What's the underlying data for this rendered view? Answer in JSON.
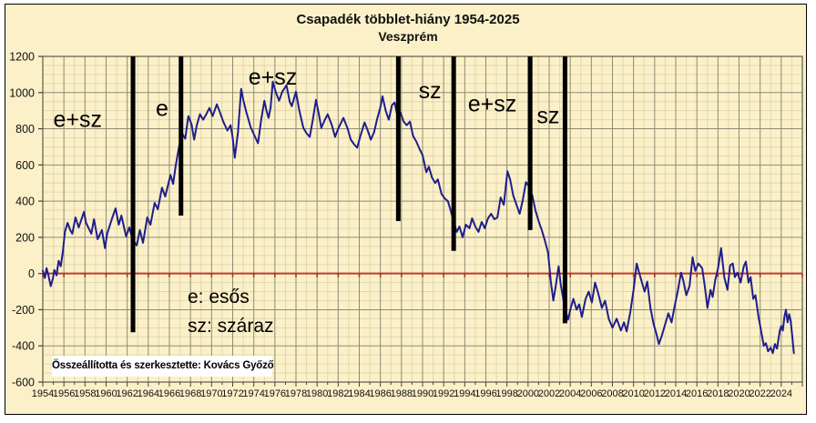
{
  "title": {
    "line1": "Csapadék többlet-hiány 1954-2025",
    "line2": "Veszprém"
  },
  "legend": {
    "line1": "e: esős",
    "line2": "sz: száraz"
  },
  "attribution": "Összeállította és szerkesztette: Kovács Győző",
  "colors": {
    "outer_background": "#FFFFFF",
    "background": "#FBF0C8",
    "grid_minor": "#E2D8AE",
    "grid_major": "#8F8C74",
    "plot_border": "#5C5A4C",
    "tick": "#444444",
    "text": "#111111",
    "zero_line": "#C0392B",
    "zero_tick": "#A93226",
    "series": "#1E1E8C",
    "separator": "#000000"
  },
  "chart_data": {
    "type": "line",
    "title": "Csapadék többlet-hiány 1954-2025 — Veszprém",
    "xlabel": "",
    "ylabel": "",
    "x_range": [
      1954,
      2026
    ],
    "y_range": [
      -600,
      1200
    ],
    "x_major_step": 2,
    "x_minor_step": 1,
    "y_major_step": 200,
    "y_minor_step": 50,
    "grid": true,
    "zero_line": 0,
    "x_tick_labels": [
      "1954",
      "1956",
      "1958",
      "1960",
      "1962",
      "1964",
      "1966",
      "1968",
      "1970",
      "1972",
      "1974",
      "1976",
      "1978",
      "1980",
      "1982",
      "1984",
      "1986",
      "1988",
      "1990",
      "1992",
      "1994",
      "1996",
      "1998",
      "2000",
      "2002",
      "2004",
      "2006",
      "2008",
      "2010",
      "2012",
      "2014",
      "2016",
      "2018",
      "2020",
      "2022",
      "2024"
    ],
    "y_tick_labels": [
      "1200",
      "1000",
      "800",
      "600",
      "400",
      "200",
      "0",
      "-200",
      "-400",
      "-600"
    ],
    "series": [
      {
        "name": "csapadék többlet-hiány",
        "points": [
          [
            1954.0,
            15
          ],
          [
            1954.2,
            -25
          ],
          [
            1954.35,
            30
          ],
          [
            1954.55,
            -15
          ],
          [
            1954.75,
            -70
          ],
          [
            1954.95,
            -30
          ],
          [
            1955.1,
            20
          ],
          [
            1955.3,
            -10
          ],
          [
            1955.5,
            70
          ],
          [
            1955.7,
            40
          ],
          [
            1955.9,
            120
          ],
          [
            1956.1,
            230
          ],
          [
            1956.35,
            280
          ],
          [
            1956.6,
            240
          ],
          [
            1956.8,
            220
          ],
          [
            1957.1,
            310
          ],
          [
            1957.4,
            255
          ],
          [
            1957.9,
            340
          ],
          [
            1958.1,
            280
          ],
          [
            1958.6,
            220
          ],
          [
            1958.85,
            300
          ],
          [
            1959.2,
            190
          ],
          [
            1959.6,
            240
          ],
          [
            1959.9,
            140
          ],
          [
            1960.1,
            220
          ],
          [
            1960.6,
            310
          ],
          [
            1960.9,
            360
          ],
          [
            1961.2,
            270
          ],
          [
            1961.45,
            320
          ],
          [
            1961.9,
            205
          ],
          [
            1962.2,
            255
          ],
          [
            1962.5,
            190
          ],
          [
            1962.9,
            155
          ],
          [
            1963.2,
            240
          ],
          [
            1963.5,
            170
          ],
          [
            1963.9,
            310
          ],
          [
            1964.2,
            270
          ],
          [
            1964.6,
            390
          ],
          [
            1964.9,
            355
          ],
          [
            1965.3,
            475
          ],
          [
            1965.6,
            425
          ],
          [
            1966.1,
            545
          ],
          [
            1966.35,
            495
          ],
          [
            1966.6,
            595
          ],
          [
            1966.9,
            695
          ],
          [
            1967.2,
            775
          ],
          [
            1967.5,
            745
          ],
          [
            1967.8,
            870
          ],
          [
            1968.1,
            825
          ],
          [
            1968.35,
            740
          ],
          [
            1968.6,
            820
          ],
          [
            1968.9,
            880
          ],
          [
            1969.2,
            850
          ],
          [
            1969.5,
            880
          ],
          [
            1969.8,
            915
          ],
          [
            1970.1,
            870
          ],
          [
            1970.5,
            935
          ],
          [
            1970.8,
            890
          ],
          [
            1971.1,
            840
          ],
          [
            1971.5,
            790
          ],
          [
            1971.8,
            820
          ],
          [
            1972.0,
            750
          ],
          [
            1972.2,
            640
          ],
          [
            1972.5,
            780
          ],
          [
            1972.8,
            1020
          ],
          [
            1973.0,
            960
          ],
          [
            1973.3,
            890
          ],
          [
            1973.7,
            810
          ],
          [
            1974.0,
            770
          ],
          [
            1974.4,
            720
          ],
          [
            1974.7,
            850
          ],
          [
            1975.0,
            955
          ],
          [
            1975.2,
            900
          ],
          [
            1975.4,
            860
          ],
          [
            1975.6,
            920
          ],
          [
            1975.8,
            1060
          ],
          [
            1976.1,
            1000
          ],
          [
            1976.4,
            955
          ],
          [
            1976.7,
            1005
          ],
          [
            1977.1,
            1040
          ],
          [
            1977.4,
            950
          ],
          [
            1977.6,
            925
          ],
          [
            1978.0,
            1005
          ],
          [
            1978.3,
            905
          ],
          [
            1978.7,
            805
          ],
          [
            1979.0,
            775
          ],
          [
            1979.3,
            755
          ],
          [
            1979.6,
            850
          ],
          [
            1979.9,
            960
          ],
          [
            1980.2,
            870
          ],
          [
            1980.4,
            805
          ],
          [
            1980.7,
            845
          ],
          [
            1981.0,
            880
          ],
          [
            1981.4,
            820
          ],
          [
            1981.7,
            755
          ],
          [
            1982.0,
            800
          ],
          [
            1982.5,
            860
          ],
          [
            1982.9,
            800
          ],
          [
            1983.2,
            740
          ],
          [
            1983.5,
            715
          ],
          [
            1983.8,
            695
          ],
          [
            1984.1,
            760
          ],
          [
            1984.5,
            835
          ],
          [
            1984.8,
            790
          ],
          [
            1985.1,
            740
          ],
          [
            1985.4,
            780
          ],
          [
            1985.7,
            855
          ],
          [
            1986.0,
            920
          ],
          [
            1986.2,
            980
          ],
          [
            1986.5,
            900
          ],
          [
            1986.8,
            850
          ],
          [
            1987.1,
            930
          ],
          [
            1987.35,
            945
          ],
          [
            1987.6,
            875
          ],
          [
            1987.9,
            890
          ],
          [
            1988.2,
            840
          ],
          [
            1988.5,
            820
          ],
          [
            1988.8,
            840
          ],
          [
            1989.1,
            760
          ],
          [
            1989.4,
            730
          ],
          [
            1989.7,
            690
          ],
          [
            1990.0,
            655
          ],
          [
            1990.35,
            560
          ],
          [
            1990.6,
            590
          ],
          [
            1990.9,
            530
          ],
          [
            1991.2,
            500
          ],
          [
            1991.45,
            520
          ],
          [
            1991.8,
            440
          ],
          [
            1992.1,
            415
          ],
          [
            1992.4,
            400
          ],
          [
            1992.7,
            340
          ],
          [
            1992.95,
            285
          ],
          [
            1993.25,
            230
          ],
          [
            1993.5,
            260
          ],
          [
            1993.8,
            200
          ],
          [
            1994.1,
            270
          ],
          [
            1994.45,
            250
          ],
          [
            1994.7,
            305
          ],
          [
            1995.0,
            260
          ],
          [
            1995.3,
            230
          ],
          [
            1995.6,
            285
          ],
          [
            1995.9,
            250
          ],
          [
            1996.2,
            305
          ],
          [
            1996.5,
            330
          ],
          [
            1996.8,
            300
          ],
          [
            1997.1,
            310
          ],
          [
            1997.4,
            420
          ],
          [
            1997.7,
            380
          ],
          [
            1998.05,
            565
          ],
          [
            1998.3,
            520
          ],
          [
            1998.6,
            430
          ],
          [
            1998.9,
            380
          ],
          [
            1999.2,
            330
          ],
          [
            1999.5,
            405
          ],
          [
            1999.8,
            505
          ],
          [
            2000.1,
            480
          ],
          [
            2000.4,
            430
          ],
          [
            2000.7,
            350
          ],
          [
            2001.0,
            290
          ],
          [
            2001.3,
            240
          ],
          [
            2001.6,
            180
          ],
          [
            2001.9,
            115
          ],
          [
            2002.15,
            -40
          ],
          [
            2002.4,
            -150
          ],
          [
            2002.65,
            -60
          ],
          [
            2002.9,
            40
          ],
          [
            2003.1,
            -60
          ],
          [
            2003.35,
            -145
          ],
          [
            2003.6,
            -215
          ],
          [
            2003.8,
            -255
          ],
          [
            2004.0,
            -200
          ],
          [
            2004.3,
            -140
          ],
          [
            2004.6,
            -200
          ],
          [
            2004.85,
            -170
          ],
          [
            2005.1,
            -240
          ],
          [
            2005.45,
            -140
          ],
          [
            2005.75,
            -100
          ],
          [
            2006.05,
            -160
          ],
          [
            2006.35,
            -50
          ],
          [
            2006.65,
            -110
          ],
          [
            2007.0,
            -190
          ],
          [
            2007.3,
            -150
          ],
          [
            2007.65,
            -250
          ],
          [
            2008.0,
            -300
          ],
          [
            2008.4,
            -250
          ],
          [
            2008.8,
            -315
          ],
          [
            2009.1,
            -270
          ],
          [
            2009.35,
            -320
          ],
          [
            2009.7,
            -210
          ],
          [
            2010.0,
            -90
          ],
          [
            2010.3,
            55
          ],
          [
            2010.5,
            10
          ],
          [
            2010.8,
            -50
          ],
          [
            2011.05,
            -100
          ],
          [
            2011.3,
            -45
          ],
          [
            2011.6,
            -190
          ],
          [
            2011.9,
            -280
          ],
          [
            2012.15,
            -330
          ],
          [
            2012.4,
            -390
          ],
          [
            2012.7,
            -340
          ],
          [
            2013.0,
            -280
          ],
          [
            2013.3,
            -220
          ],
          [
            2013.6,
            -270
          ],
          [
            2013.9,
            -180
          ],
          [
            2014.2,
            -95
          ],
          [
            2014.5,
            5
          ],
          [
            2014.7,
            -35
          ],
          [
            2015.0,
            -120
          ],
          [
            2015.3,
            -70
          ],
          [
            2015.6,
            90
          ],
          [
            2015.85,
            15
          ],
          [
            2016.15,
            55
          ],
          [
            2016.5,
            30
          ],
          [
            2016.75,
            -70
          ],
          [
            2017.0,
            -190
          ],
          [
            2017.3,
            -90
          ],
          [
            2017.5,
            -130
          ],
          [
            2017.75,
            -35
          ],
          [
            2018.0,
            25
          ],
          [
            2018.3,
            140
          ],
          [
            2018.6,
            -20
          ],
          [
            2018.9,
            -90
          ],
          [
            2019.15,
            45
          ],
          [
            2019.4,
            55
          ],
          [
            2019.6,
            -20
          ],
          [
            2019.85,
            5
          ],
          [
            2020.15,
            -50
          ],
          [
            2020.45,
            40
          ],
          [
            2020.65,
            65
          ],
          [
            2020.9,
            -50
          ],
          [
            2021.1,
            -20
          ],
          [
            2021.35,
            -140
          ],
          [
            2021.55,
            -120
          ],
          [
            2021.85,
            -240
          ],
          [
            2022.1,
            -320
          ],
          [
            2022.35,
            -400
          ],
          [
            2022.55,
            -385
          ],
          [
            2022.75,
            -430
          ],
          [
            2023.0,
            -410
          ],
          [
            2023.2,
            -440
          ],
          [
            2023.4,
            -390
          ],
          [
            2023.6,
            -415
          ],
          [
            2023.85,
            -320
          ],
          [
            2024.0,
            -290
          ],
          [
            2024.15,
            -315
          ],
          [
            2024.3,
            -240
          ],
          [
            2024.45,
            -200
          ],
          [
            2024.6,
            -270
          ],
          [
            2024.75,
            -225
          ],
          [
            2024.9,
            -265
          ],
          [
            2025.05,
            -350
          ],
          [
            2025.2,
            -440
          ]
        ]
      }
    ],
    "separators": [
      {
        "x": 1962.55,
        "y_from": 1200,
        "y_to": -325
      },
      {
        "x": 1967.1,
        "y_from": 1200,
        "y_to": 320
      },
      {
        "x": 1987.7,
        "y_from": 1200,
        "y_to": 290
      },
      {
        "x": 1992.95,
        "y_from": 1200,
        "y_to": 125
      },
      {
        "x": 2000.2,
        "y_from": 1200,
        "y_to": 240
      },
      {
        "x": 2003.5,
        "y_from": 1200,
        "y_to": -275
      }
    ],
    "period_labels": [
      {
        "text": "e+sz",
        "x": 1957.3,
        "y": 855
      },
      {
        "text": "e",
        "x": 1965.3,
        "y": 915
      },
      {
        "text": "e+sz",
        "x": 1975.8,
        "y": 1090
      },
      {
        "text": "sz",
        "x": 1990.7,
        "y": 1015
      },
      {
        "text": "e+sz",
        "x": 1996.6,
        "y": 940
      },
      {
        "text": "sz",
        "x": 2001.9,
        "y": 875
      }
    ],
    "legend_entries": [
      "e: esős",
      "sz: száraz"
    ],
    "legend_position": "inside-lower-left"
  }
}
